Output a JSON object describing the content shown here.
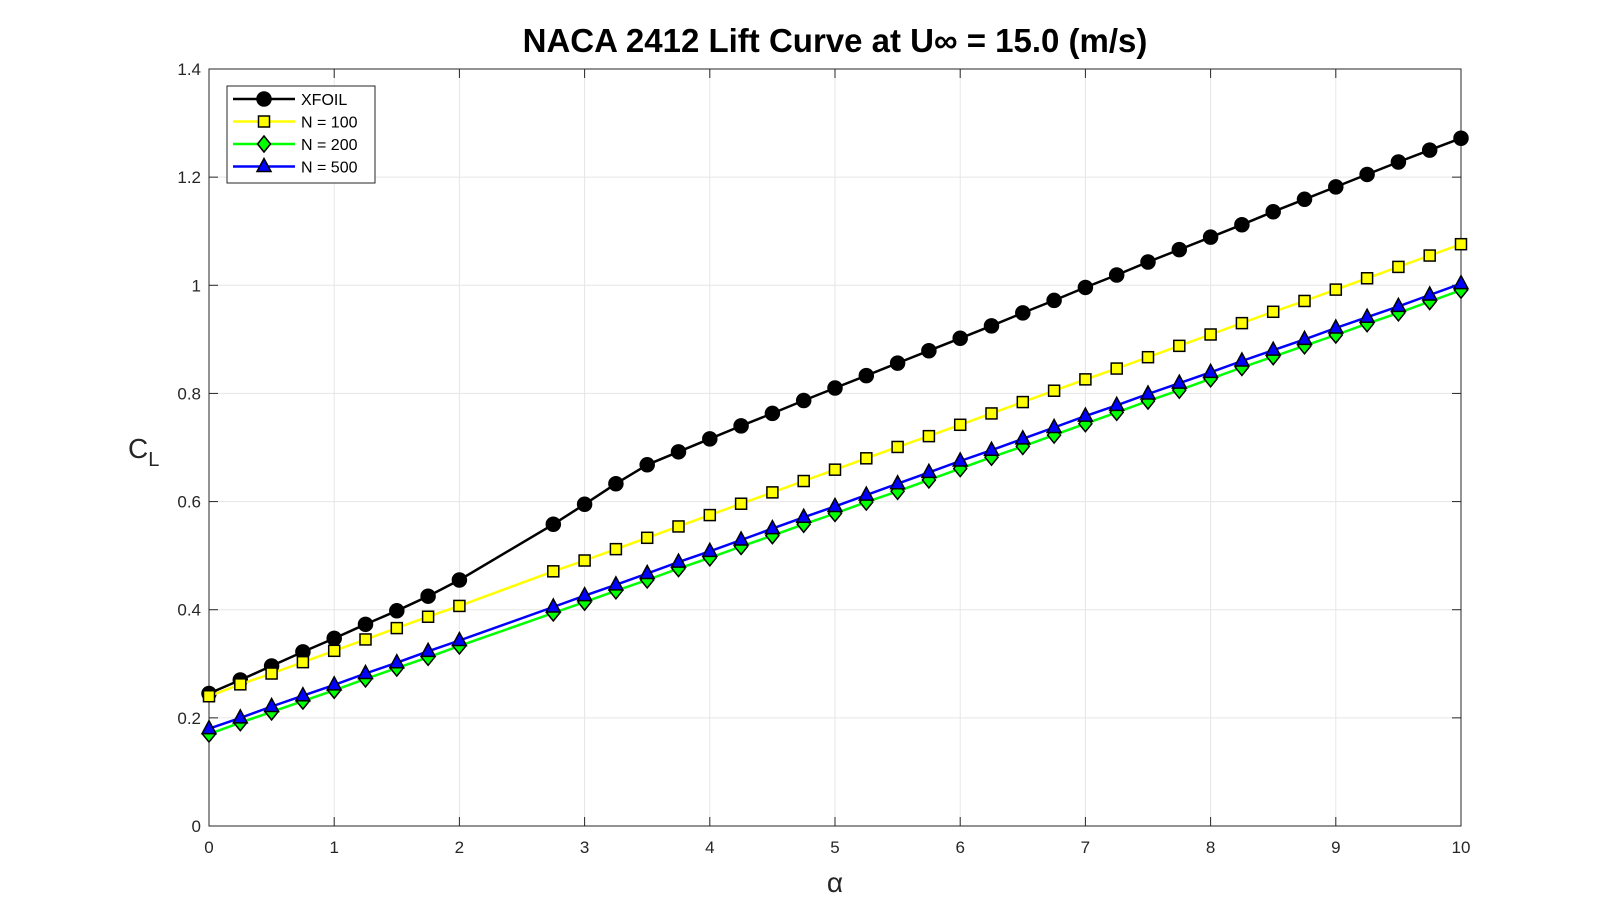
{
  "chart_data": {
    "type": "line",
    "title": "NACA 2412 Lift Curve at U∞ = 15.0 (m/s)",
    "xlabel": "α",
    "ylabel_main": "C",
    "ylabel_sub": "L",
    "xlim": [
      0,
      10
    ],
    "ylim": [
      0,
      1.4
    ],
    "xticks": [
      "0",
      "1",
      "2",
      "3",
      "4",
      "5",
      "6",
      "7",
      "8",
      "9",
      "10"
    ],
    "yticks": [
      "0",
      "0.2",
      "0.4",
      "0.6",
      "0.8",
      "1",
      "1.2",
      "1.4"
    ],
    "grid": true,
    "legend_position": "top-left",
    "series": [
      {
        "name": "XFOIL",
        "color": "#000000",
        "marker": "circle",
        "marker_fill": "#000000",
        "x": [
          0,
          0.25,
          0.5,
          0.75,
          1,
          1.25,
          1.5,
          1.75,
          2,
          2.75,
          3,
          3.25,
          3.5,
          3.75,
          4,
          4.25,
          4.5,
          4.75,
          5,
          5.25,
          5.5,
          5.75,
          6,
          6.25,
          6.5,
          6.75,
          7,
          7.25,
          7.5,
          7.75,
          8,
          8.25,
          8.5,
          8.75,
          9,
          9.25,
          9.5,
          9.75,
          10
        ],
        "y": [
          0.245,
          0.27,
          0.296,
          0.322,
          0.347,
          0.373,
          0.398,
          0.425,
          0.455,
          0.558,
          0.595,
          0.633,
          0.668,
          0.692,
          0.716,
          0.74,
          0.763,
          0.787,
          0.81,
          0.833,
          0.856,
          0.879,
          0.902,
          0.925,
          0.949,
          0.972,
          0.996,
          1.019,
          1.043,
          1.066,
          1.089,
          1.112,
          1.136,
          1.159,
          1.182,
          1.205,
          1.228,
          1.25,
          1.272
        ]
      },
      {
        "name": "N = 100",
        "color": "#ffff00",
        "marker": "square",
        "marker_fill": "#ffff00",
        "x": [
          0,
          0.25,
          0.5,
          0.75,
          1,
          1.25,
          1.5,
          1.75,
          2,
          2.75,
          3,
          3.25,
          3.5,
          3.75,
          4,
          4.25,
          4.5,
          4.75,
          5,
          5.25,
          5.5,
          5.75,
          6,
          6.25,
          6.5,
          6.75,
          7,
          7.25,
          7.5,
          7.75,
          8,
          8.25,
          8.5,
          8.75,
          9,
          9.25,
          9.5,
          9.75,
          10
        ],
        "y": [
          0.24,
          0.262,
          0.282,
          0.303,
          0.324,
          0.345,
          0.366,
          0.387,
          0.407,
          0.471,
          0.491,
          0.512,
          0.533,
          0.554,
          0.575,
          0.596,
          0.617,
          0.638,
          0.659,
          0.68,
          0.701,
          0.721,
          0.742,
          0.763,
          0.784,
          0.805,
          0.826,
          0.846,
          0.867,
          0.888,
          0.909,
          0.93,
          0.951,
          0.971,
          0.992,
          1.013,
          1.034,
          1.055,
          1.076
        ]
      },
      {
        "name": "N = 200",
        "color": "#00ff00",
        "marker": "diamond",
        "marker_fill": "#00ff00",
        "x": [
          0,
          0.25,
          0.5,
          0.75,
          1,
          1.25,
          1.5,
          1.75,
          2,
          2.75,
          3,
          3.25,
          3.5,
          3.75,
          4,
          4.25,
          4.5,
          4.75,
          5,
          5.25,
          5.5,
          5.75,
          6,
          6.25,
          6.5,
          6.75,
          7,
          7.25,
          7.5,
          7.75,
          8,
          8.25,
          8.5,
          8.75,
          9,
          9.25,
          9.5,
          9.75,
          10
        ],
        "y": [
          0.17,
          0.191,
          0.211,
          0.231,
          0.251,
          0.272,
          0.292,
          0.312,
          0.333,
          0.394,
          0.414,
          0.435,
          0.455,
          0.476,
          0.496,
          0.517,
          0.537,
          0.558,
          0.578,
          0.599,
          0.619,
          0.64,
          0.661,
          0.682,
          0.702,
          0.723,
          0.744,
          0.765,
          0.786,
          0.806,
          0.827,
          0.848,
          0.868,
          0.888,
          0.908,
          0.929,
          0.949,
          0.97,
          0.991
        ]
      },
      {
        "name": "N = 500",
        "color": "#0000ff",
        "marker": "triangle",
        "marker_fill": "#0000ff",
        "x": [
          0,
          0.25,
          0.5,
          0.75,
          1,
          1.25,
          1.5,
          1.75,
          2,
          2.75,
          3,
          3.25,
          3.5,
          3.75,
          4,
          4.25,
          4.5,
          4.75,
          5,
          5.25,
          5.5,
          5.75,
          6,
          6.25,
          6.5,
          6.75,
          7,
          7.25,
          7.5,
          7.75,
          8,
          8.25,
          8.5,
          8.75,
          9,
          9.25,
          9.5,
          9.75,
          10
        ],
        "y": [
          0.18,
          0.2,
          0.221,
          0.241,
          0.261,
          0.282,
          0.302,
          0.323,
          0.343,
          0.405,
          0.426,
          0.446,
          0.467,
          0.488,
          0.508,
          0.529,
          0.55,
          0.571,
          0.591,
          0.612,
          0.633,
          0.654,
          0.675,
          0.695,
          0.716,
          0.737,
          0.758,
          0.778,
          0.799,
          0.819,
          0.839,
          0.86,
          0.88,
          0.9,
          0.921,
          0.941,
          0.961,
          0.982,
          1.003
        ]
      }
    ]
  }
}
